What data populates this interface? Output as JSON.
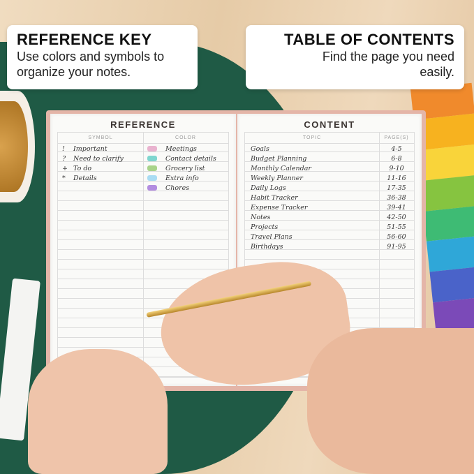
{
  "callouts": {
    "left": {
      "title": "REFERENCE KEY",
      "text": "Use colors and symbols to organize your notes."
    },
    "right": {
      "title": "TABLE OF CONTENTS",
      "text": "Find the page you need easily."
    }
  },
  "reference": {
    "title": "REFERENCE",
    "headers": [
      "SYMBOL",
      "COLOR"
    ],
    "symbols": [
      {
        "symbol": "!",
        "label": "Important"
      },
      {
        "symbol": "?",
        "label": "Need to clarify"
      },
      {
        "symbol": "+",
        "label": "To do"
      },
      {
        "symbol": "*",
        "label": "Details"
      }
    ],
    "colors": [
      {
        "color": "#e9b3cf",
        "label": "Meetings"
      },
      {
        "color": "#7fd6cf",
        "label": "Contact details"
      },
      {
        "color": "#a8d38a",
        "label": "Grocery list"
      },
      {
        "color": "#a9dcf3",
        "label": "Extra info"
      },
      {
        "color": "#b38de0",
        "label": "Chores"
      }
    ]
  },
  "content": {
    "title": "CONTENT",
    "headers": [
      "TOPIC",
      "PAGE(S)"
    ],
    "rows": [
      [
        "Goals",
        "4-5"
      ],
      [
        "Budget Planning",
        "6-8"
      ],
      [
        "Monthly Calendar",
        "9-10"
      ],
      [
        "Weekly Planner",
        "11-16"
      ],
      [
        "Daily Logs",
        "17-35"
      ],
      [
        "Habit Tracker",
        "36-38"
      ],
      [
        "Expense Tracker",
        "39-41"
      ],
      [
        "Notes",
        "42-50"
      ],
      [
        "Projects",
        "51-55"
      ],
      [
        "Travel Plans",
        "56-60"
      ],
      [
        "Birthdays",
        "91-95"
      ]
    ]
  },
  "sticker_colors": [
    "#f08a2c",
    "#f7b21f",
    "#f9d43a",
    "#86c440",
    "#3ebb74",
    "#2fa7d8",
    "#4a63c9",
    "#7b4ab8",
    "#c04bb2"
  ]
}
